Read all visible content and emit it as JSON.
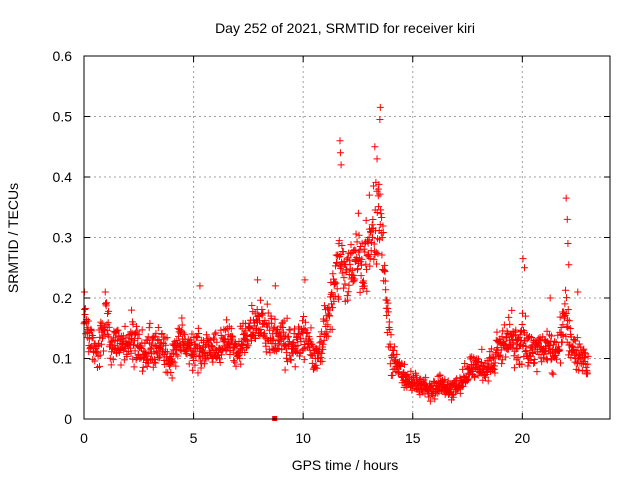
{
  "chart_data": {
    "type": "scatter",
    "title": "Day 252 of 2021, SRMTID for receiver kiri",
    "xlabel": "GPS time / hours",
    "ylabel": "SRMTID / TECUs",
    "xlim": [
      0,
      24
    ],
    "ylim": [
      0,
      0.6
    ],
    "grid": true,
    "marker": "+",
    "xticks": [
      0,
      5,
      10,
      15,
      20
    ],
    "xtick_labels": [
      "0",
      "5",
      "10",
      "15",
      "20"
    ],
    "yticks": [
      0,
      0.1,
      0.2,
      0.3,
      0.4,
      0.5,
      0.6
    ],
    "ytick_labels": [
      "0",
      "0.1",
      "0.2",
      "0.3",
      "0.4",
      "0.5",
      "0.6"
    ],
    "series": [
      {
        "name": "SRMTID",
        "color": "#ff0000",
        "x": [
          0.0,
          0.25,
          0.5,
          0.75,
          1.0,
          1.25,
          1.5,
          1.75,
          2.0,
          2.25,
          2.5,
          2.75,
          3.0,
          3.25,
          3.5,
          3.75,
          4.0,
          4.25,
          4.5,
          4.75,
          5.0,
          5.25,
          5.5,
          5.75,
          6.0,
          6.25,
          6.5,
          6.75,
          7.0,
          7.25,
          7.5,
          7.75,
          8.0,
          8.25,
          8.5,
          8.75,
          9.0,
          9.25,
          9.5,
          9.75,
          10.0,
          10.25,
          10.5,
          10.75,
          11.0,
          11.25,
          11.5,
          11.75,
          12.0,
          12.25,
          12.5,
          12.75,
          13.0,
          13.25,
          13.5,
          13.75,
          14.0,
          14.25,
          14.5,
          14.75,
          15.0,
          15.25,
          15.5,
          15.75,
          16.0,
          16.25,
          16.5,
          16.75,
          17.0,
          17.25,
          17.5,
          17.75,
          18.0,
          18.25,
          18.5,
          18.75,
          19.0,
          19.25,
          19.5,
          19.75,
          20.0,
          20.25,
          20.5,
          20.75,
          21.0,
          21.25,
          21.5,
          21.75,
          22.0,
          22.25,
          22.5,
          22.75,
          23.0
        ],
        "mean": [
          0.18,
          0.13,
          0.11,
          0.13,
          0.16,
          0.12,
          0.13,
          0.12,
          0.12,
          0.14,
          0.12,
          0.1,
          0.12,
          0.11,
          0.13,
          0.11,
          0.1,
          0.12,
          0.13,
          0.12,
          0.11,
          0.12,
          0.11,
          0.12,
          0.11,
          0.12,
          0.13,
          0.12,
          0.11,
          0.13,
          0.14,
          0.15,
          0.16,
          0.15,
          0.14,
          0.13,
          0.14,
          0.13,
          0.12,
          0.13,
          0.14,
          0.13,
          0.1,
          0.11,
          0.14,
          0.19,
          0.24,
          0.26,
          0.25,
          0.24,
          0.27,
          0.25,
          0.28,
          0.3,
          0.35,
          0.2,
          0.1,
          0.09,
          0.07,
          0.06,
          0.06,
          0.06,
          0.05,
          0.05,
          0.05,
          0.06,
          0.05,
          0.05,
          0.05,
          0.06,
          0.08,
          0.09,
          0.09,
          0.08,
          0.09,
          0.1,
          0.12,
          0.13,
          0.14,
          0.12,
          0.14,
          0.12,
          0.11,
          0.12,
          0.11,
          0.12,
          0.11,
          0.13,
          0.17,
          0.12,
          0.11,
          0.1,
          0.09
        ],
        "spread": [
          0.04,
          0.05,
          0.04,
          0.05,
          0.05,
          0.04,
          0.04,
          0.04,
          0.04,
          0.05,
          0.04,
          0.04,
          0.04,
          0.04,
          0.04,
          0.04,
          0.04,
          0.04,
          0.04,
          0.04,
          0.04,
          0.05,
          0.04,
          0.04,
          0.04,
          0.04,
          0.04,
          0.04,
          0.04,
          0.04,
          0.04,
          0.05,
          0.05,
          0.04,
          0.05,
          0.04,
          0.05,
          0.05,
          0.04,
          0.04,
          0.05,
          0.04,
          0.04,
          0.04,
          0.06,
          0.08,
          0.08,
          0.08,
          0.07,
          0.07,
          0.08,
          0.08,
          0.09,
          0.1,
          0.09,
          0.07,
          0.04,
          0.03,
          0.03,
          0.02,
          0.02,
          0.02,
          0.02,
          0.02,
          0.02,
          0.02,
          0.02,
          0.02,
          0.02,
          0.02,
          0.03,
          0.03,
          0.03,
          0.03,
          0.04,
          0.04,
          0.05,
          0.05,
          0.05,
          0.04,
          0.05,
          0.04,
          0.04,
          0.04,
          0.04,
          0.04,
          0.04,
          0.05,
          0.07,
          0.04,
          0.04,
          0.03,
          0.03
        ],
        "peaks": [
          {
            "x": 0.02,
            "y": 0.21
          },
          {
            "x": 0.97,
            "y": 0.21
          },
          {
            "x": 2.17,
            "y": 0.18
          },
          {
            "x": 5.29,
            "y": 0.22
          },
          {
            "x": 7.92,
            "y": 0.23
          },
          {
            "x": 8.73,
            "y": 0.22
          },
          {
            "x": 10.08,
            "y": 0.23
          },
          {
            "x": 11.68,
            "y": 0.46
          },
          {
            "x": 11.7,
            "y": 0.44
          },
          {
            "x": 11.73,
            "y": 0.42
          },
          {
            "x": 12.52,
            "y": 0.34
          },
          {
            "x": 13.02,
            "y": 0.37
          },
          {
            "x": 13.27,
            "y": 0.45
          },
          {
            "x": 13.37,
            "y": 0.43
          },
          {
            "x": 13.52,
            "y": 0.515
          },
          {
            "x": 13.5,
            "y": 0.495
          },
          {
            "x": 13.43,
            "y": 0.38
          },
          {
            "x": 20.03,
            "y": 0.265
          },
          {
            "x": 20.1,
            "y": 0.25
          },
          {
            "x": 21.27,
            "y": 0.2
          },
          {
            "x": 22.0,
            "y": 0.365
          },
          {
            "x": 22.05,
            "y": 0.33
          },
          {
            "x": 22.08,
            "y": 0.29
          },
          {
            "x": 22.12,
            "y": 0.255
          },
          {
            "x": 22.53,
            "y": 0.21
          }
        ],
        "ground_markers": [
          {
            "x": 8.7,
            "y": 0.0
          }
        ]
      }
    ]
  }
}
